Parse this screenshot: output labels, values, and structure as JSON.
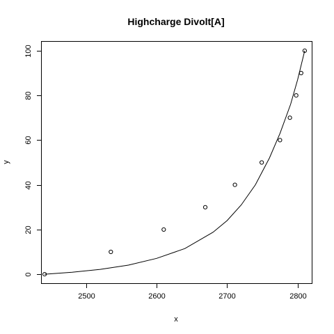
{
  "chart_data": {
    "type": "scatter",
    "title": "Highcharge Divolt[A]",
    "xlabel": "x",
    "ylabel": "y",
    "xlim": [
      2437,
      2820
    ],
    "ylim": [
      -4,
      104
    ],
    "x_ticks": [
      2500,
      2600,
      2700,
      2800
    ],
    "y_ticks": [
      0,
      20,
      40,
      60,
      80,
      100
    ],
    "grid": false,
    "legend": "none",
    "series": [
      {
        "kind": "points",
        "marker": "open-circle",
        "x": [
          2441,
          2535,
          2610,
          2669,
          2711,
          2749,
          2775,
          2789,
          2798,
          2805,
          2810
        ],
        "y": [
          0,
          10,
          20,
          30,
          40,
          50,
          60,
          70,
          80,
          90,
          100
        ]
      },
      {
        "kind": "fitted-curve",
        "x": [
          2441,
          2480,
          2520,
          2560,
          2600,
          2640,
          2680,
          2700,
          2720,
          2740,
          2760,
          2775,
          2790,
          2800,
          2810
        ],
        "y": [
          0,
          0.9,
          2.2,
          4.1,
          7.1,
          11.5,
          18.8,
          24,
          31,
          40,
          52,
          63,
          76,
          87,
          100
        ]
      }
    ]
  }
}
